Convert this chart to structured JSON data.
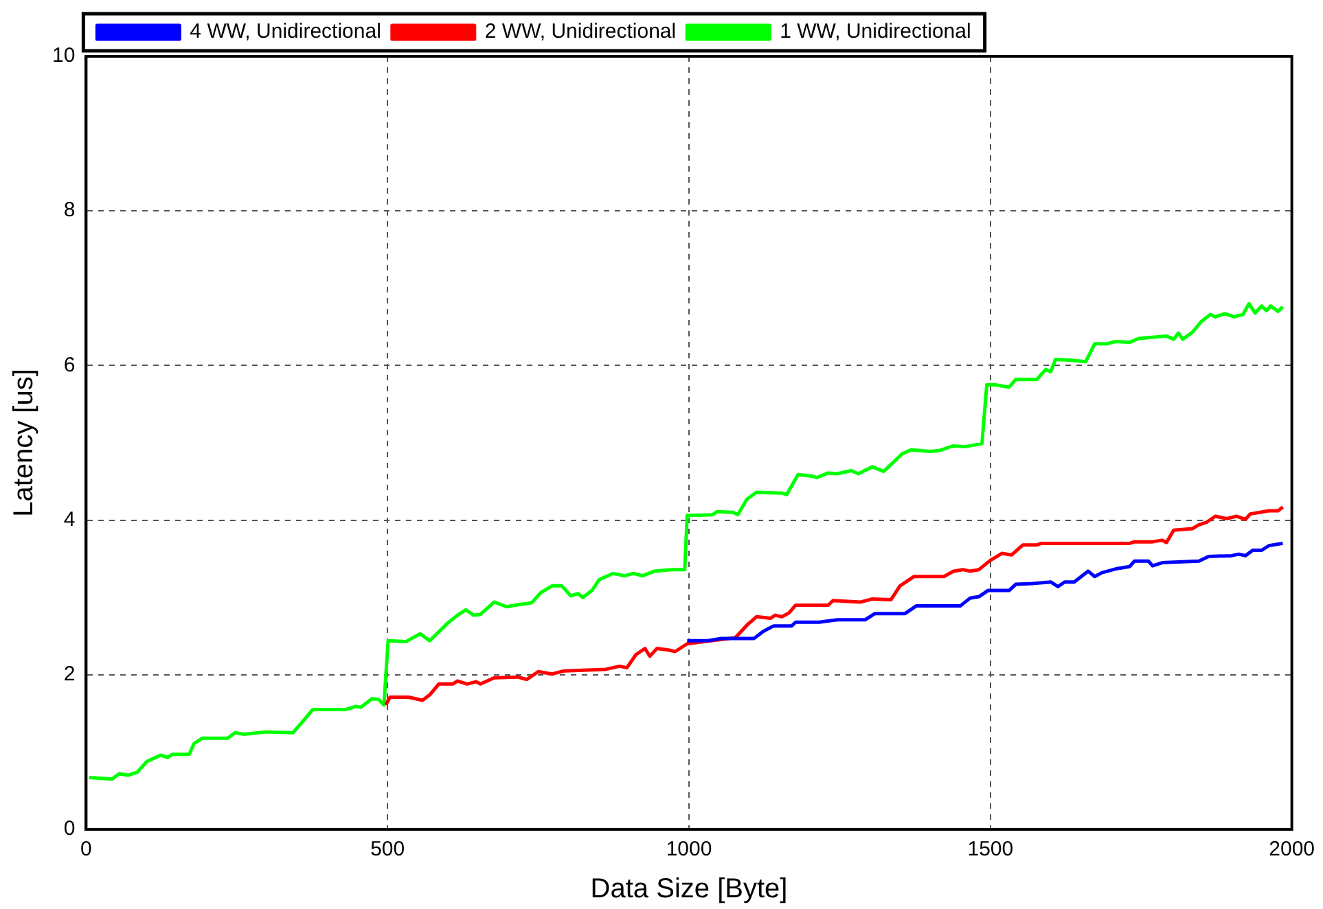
{
  "chart_data": {
    "type": "line",
    "xlabel": "Data Size [Byte]",
    "ylabel": "Latency [us]",
    "xlim": [
      0,
      2000
    ],
    "ylim": [
      0,
      10
    ],
    "xticks": [
      0,
      500,
      1000,
      1500,
      2000
    ],
    "yticks": [
      0,
      2,
      4,
      6,
      8,
      10
    ],
    "grid": true,
    "legend": "top left",
    "line_style": "solid",
    "marker": "none",
    "series": [
      {
        "name": "4 WW, Unidirectional",
        "color": "#0000ff",
        "x": [
          997,
          1016,
          1031,
          1054,
          1108,
          1123,
          1140,
          1170,
          1177,
          1216,
          1246,
          1292,
          1308,
          1358,
          1377,
          1450,
          1466,
          1481,
          1496,
          1531,
          1542,
          1569,
          1600,
          1612,
          1623,
          1639,
          1662,
          1673,
          1685,
          1708,
          1731,
          1739,
          1762,
          1769,
          1785,
          1846,
          1862,
          1900,
          1912,
          1923,
          1935,
          1950,
          1962,
          1985
        ],
        "values": [
          2.44,
          2.44,
          2.44,
          2.47,
          2.47,
          2.56,
          2.63,
          2.63,
          2.68,
          2.68,
          2.71,
          2.71,
          2.79,
          2.79,
          2.89,
          2.89,
          2.99,
          3.01,
          3.09,
          3.09,
          3.17,
          3.18,
          3.2,
          3.14,
          3.2,
          3.2,
          3.34,
          3.27,
          3.32,
          3.37,
          3.4,
          3.47,
          3.47,
          3.41,
          3.45,
          3.47,
          3.53,
          3.54,
          3.56,
          3.54,
          3.61,
          3.61,
          3.67,
          3.7
        ]
      },
      {
        "name": "2 WW, Unidirectional",
        "color": "#ff0000",
        "x": [
          497,
          504,
          535,
          558,
          570,
          585,
          608,
          616,
          632,
          647,
          654,
          677,
          716,
          731,
          750,
          773,
          793,
          862,
          885,
          897,
          912,
          927,
          935,
          947,
          966,
          977,
          997,
          1077,
          1096,
          1112,
          1135,
          1143,
          1154,
          1166,
          1177,
          1231,
          1239,
          1285,
          1304,
          1335,
          1350,
          1373,
          1423,
          1439,
          1454,
          1466,
          1481,
          1500,
          1519,
          1535,
          1554,
          1577,
          1585,
          1731,
          1739,
          1769,
          1785,
          1792,
          1804,
          1835,
          1846,
          1858,
          1873,
          1892,
          1908,
          1923,
          1931,
          1962,
          1977,
          1985
        ],
        "values": [
          1.61,
          1.71,
          1.71,
          1.67,
          1.74,
          1.88,
          1.88,
          1.92,
          1.88,
          1.91,
          1.88,
          1.96,
          1.97,
          1.94,
          2.04,
          2.01,
          2.05,
          2.07,
          2.11,
          2.09,
          2.26,
          2.34,
          2.24,
          2.34,
          2.32,
          2.3,
          2.4,
          2.48,
          2.64,
          2.75,
          2.73,
          2.77,
          2.75,
          2.8,
          2.9,
          2.9,
          2.96,
          2.94,
          2.98,
          2.97,
          3.15,
          3.27,
          3.27,
          3.34,
          3.36,
          3.34,
          3.36,
          3.48,
          3.57,
          3.55,
          3.68,
          3.68,
          3.7,
          3.7,
          3.72,
          3.72,
          3.74,
          3.71,
          3.87,
          3.89,
          3.94,
          3.97,
          4.05,
          4.02,
          4.05,
          4.01,
          4.08,
          4.12,
          4.12,
          4.17
        ]
      },
      {
        "name": "1 WW, Unidirectional",
        "color": "#00ff00",
        "x": [
          5,
          43,
          55,
          70,
          85,
          101,
          124,
          135,
          143,
          171,
          179,
          193,
          235,
          247,
          262,
          297,
          343,
          362,
          376,
          431,
          447,
          456,
          474,
          485,
          494,
          501,
          531,
          554,
          570,
          600,
          616,
          630,
          643,
          654,
          677,
          697,
          720,
          739,
          754,
          773,
          789,
          804,
          816,
          824,
          839,
          851,
          874,
          893,
          908,
          923,
          943,
          970,
          993,
          997,
          1000,
          1039,
          1047,
          1073,
          1081,
          1096,
          1112,
          1154,
          1162,
          1181,
          1204,
          1212,
          1231,
          1246,
          1269,
          1281,
          1304,
          1323,
          1354,
          1369,
          1400,
          1415,
          1438,
          1458,
          1486,
          1494,
          1508,
          1531,
          1542,
          1577,
          1592,
          1600,
          1608,
          1631,
          1658,
          1673,
          1692,
          1708,
          1731,
          1746,
          1792,
          1804,
          1812,
          1819,
          1835,
          1850,
          1865,
          1873,
          1889,
          1904,
          1919,
          1929,
          1939,
          1950,
          1958,
          1965,
          1977,
          1985
        ],
        "values": [
          0.67,
          0.65,
          0.72,
          0.7,
          0.74,
          0.88,
          0.96,
          0.93,
          0.97,
          0.97,
          1.11,
          1.18,
          1.18,
          1.25,
          1.23,
          1.26,
          1.25,
          1.42,
          1.55,
          1.55,
          1.59,
          1.58,
          1.69,
          1.68,
          1.61,
          2.44,
          2.43,
          2.53,
          2.44,
          2.67,
          2.77,
          2.84,
          2.77,
          2.78,
          2.94,
          2.88,
          2.91,
          2.93,
          3.06,
          3.15,
          3.15,
          3.02,
          3.05,
          3.0,
          3.09,
          3.23,
          3.31,
          3.28,
          3.31,
          3.28,
          3.34,
          3.36,
          3.36,
          4.06,
          4.06,
          4.07,
          4.11,
          4.1,
          4.07,
          4.27,
          4.36,
          4.35,
          4.33,
          4.59,
          4.57,
          4.55,
          4.61,
          4.6,
          4.64,
          4.6,
          4.69,
          4.63,
          4.86,
          4.91,
          4.89,
          4.9,
          4.96,
          4.95,
          4.99,
          5.75,
          5.75,
          5.72,
          5.82,
          5.82,
          5.95,
          5.92,
          6.08,
          6.07,
          6.05,
          6.28,
          6.28,
          6.31,
          6.3,
          6.35,
          6.38,
          6.34,
          6.42,
          6.34,
          6.43,
          6.57,
          6.66,
          6.63,
          6.67,
          6.63,
          6.66,
          6.8,
          6.68,
          6.77,
          6.71,
          6.77,
          6.7,
          6.76
        ]
      }
    ]
  }
}
